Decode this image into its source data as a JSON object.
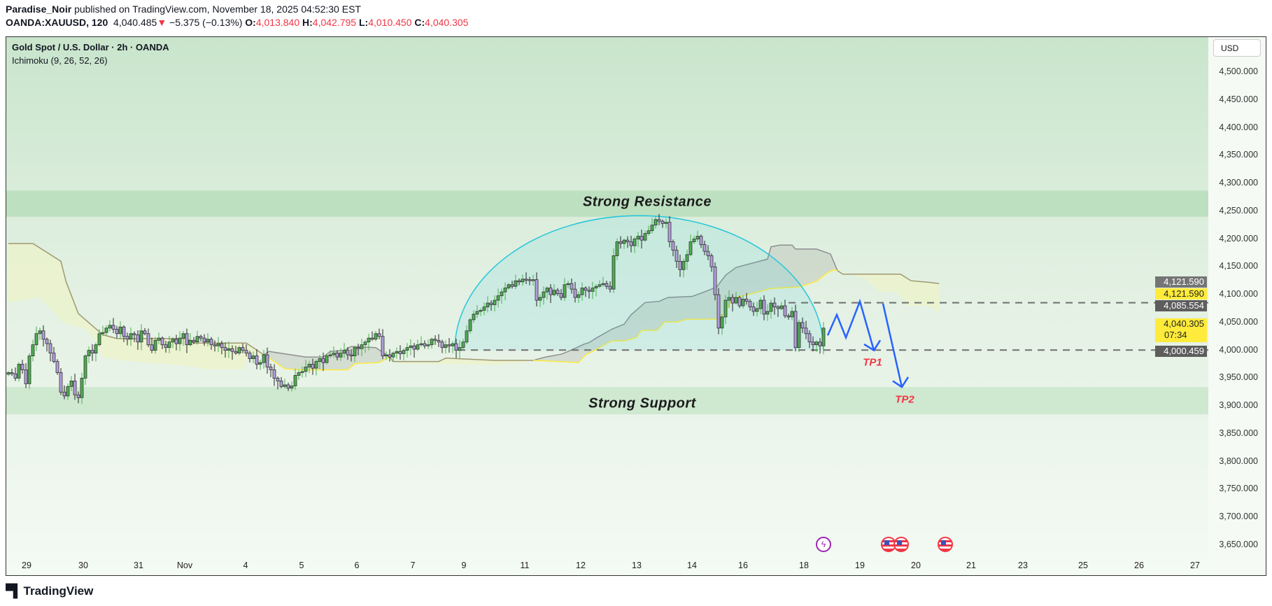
{
  "header": {
    "publisher": "Paradise_Noir",
    "published_text": "published on TradingView.com, November 18, 2025 04:52:30 EST",
    "symbol": "OANDA:XAUUSD, 120",
    "last": "4,040.485",
    "change": "−5.375 (−0.13%)",
    "o_label": "O:",
    "o": "4,013.840",
    "h_label": "H:",
    "h": "4,042.795",
    "l_label": "L:",
    "l": "4,010.450",
    "c_label": "C:",
    "c": "4,040.305"
  },
  "legend": {
    "title": "Gold Spot / U.S. Dollar · 2h · OANDA",
    "indicator": "Ichimoku (9, 26, 52, 26)"
  },
  "currency_button": "USD",
  "price_ticks": [
    "4,500.000",
    "4,450.000",
    "4,400.000",
    "4,350.000",
    "4,300.000",
    "4,250.000",
    "4,200.000",
    "4,150.000",
    "4,100.000",
    "4,050.000",
    "4,000.000",
    "3,950.000",
    "3,900.000",
    "3,850.000",
    "3,800.000",
    "3,750.000",
    "3,700.000",
    "3,650.000"
  ],
  "price_labels": {
    "cloud_b": "4,121.590",
    "cloud_a": "4,121.590",
    "level_high": "4,085.554",
    "current": "4,040.305",
    "countdown": "07:34",
    "level_low": "4,000.459"
  },
  "date_ticks": [
    "29",
    "30",
    "31",
    "Nov",
    "4",
    "5",
    "6",
    "7",
    "9",
    "11",
    "12",
    "13",
    "14",
    "16",
    "18",
    "19",
    "20",
    "21",
    "23",
    "25",
    "26",
    "27"
  ],
  "annotations": {
    "resistance": "Strong Resistance",
    "support": "Strong Support",
    "tp1": "TP1",
    "tp2": "TP2"
  },
  "branding": "TradingView",
  "colors": {
    "bull": "#4caf50",
    "bear": "#b39ddb",
    "arc": "#26c6da",
    "arrow": "#2962ff",
    "tp": "#f23645",
    "span_a": "#ffeb3b",
    "span_b": "#9e9870",
    "zone": "#bde0c0"
  },
  "chart_data": {
    "type": "candlestick",
    "title": "Gold Spot / U.S. Dollar · 2h · OANDA",
    "ylim": [
      3650,
      4500
    ],
    "closes": [
      3960,
      3958,
      3950,
      3975,
      3965,
      3940,
      3990,
      4010,
      4030,
      4035,
      4020,
      4012,
      3995,
      3980,
      3960,
      3925,
      3918,
      3935,
      3945,
      3920,
      3915,
      3950,
      3990,
      4000,
      3995,
      4010,
      4030,
      4032,
      4040,
      4045,
      4038,
      4030,
      4042,
      4025,
      4020,
      4030,
      4028,
      4015,
      4035,
      4030,
      4010,
      4000,
      4018,
      4022,
      4010,
      4005,
      4015,
      4020,
      4012,
      4022,
      4030,
      4010,
      4018,
      4015,
      4025,
      4022,
      4015,
      4020,
      4010,
      4008,
      4012,
      4005,
      4000,
      4003,
      3998,
      3995,
      4005,
      4000,
      3995,
      3985,
      3990,
      3975,
      3978,
      3992,
      3970,
      3965,
      3950,
      3945,
      3935,
      3938,
      3932,
      3936,
      3955,
      3960,
      3962,
      3970,
      3975,
      3968,
      3980,
      3985,
      3978,
      3990,
      3992,
      3995,
      3988,
      3995,
      4000,
      3992,
      3990,
      4005,
      4003,
      4010,
      4015,
      4022,
      4020,
      4030,
      4025,
      3990,
      3992,
      3988,
      3995,
      3998,
      3994,
      4000,
      4005,
      4008,
      4002,
      4010,
      4012,
      4008,
      4010,
      4020,
      4018,
      4015,
      4005,
      4010,
      4008,
      4012,
      4000,
      4005,
      4015,
      4035,
      4055,
      4065,
      4070,
      4072,
      4078,
      4085,
      4082,
      4090,
      4098,
      4105,
      4112,
      4118,
      4115,
      4125,
      4123,
      4128,
      4127,
      4126,
      4127,
      4090,
      4095,
      4105,
      4112,
      4100,
      4108,
      4102,
      4095,
      4118,
      4120,
      4110,
      4095,
      4100,
      4112,
      4108,
      4106,
      4112,
      4115,
      4118,
      4120,
      4115,
      4110,
      4170,
      4195,
      4192,
      4198,
      4195,
      4188,
      4200,
      4205,
      4198,
      4210,
      4215,
      4225,
      4235,
      4232,
      4228,
      4230,
      4195,
      4180,
      4160,
      4145,
      4160,
      4172,
      4195,
      4200,
      4205,
      4190,
      4178,
      4170,
      4150,
      4100,
      4040,
      4060,
      4090,
      4095,
      4085,
      4095,
      4080,
      4092,
      4088,
      4078,
      4070,
      4075,
      4090,
      4065,
      4070,
      4085,
      4078,
      4075,
      4080,
      4062,
      4060,
      4070,
      4005,
      4050,
      4040,
      4030,
      4015,
      4010,
      4015,
      4008,
      4040
    ],
    "zones": [
      {
        "name": "Strong Resistance",
        "from": 4240,
        "to": 4287
      },
      {
        "name": "Strong Support",
        "from": 3885,
        "to": 3934
      }
    ],
    "levels": [
      {
        "price": 4085.554,
        "from_index": 223
      },
      {
        "price": 4000.459,
        "from_index": 128.6
      }
    ],
    "arc": {
      "from_index": 127.6,
      "to_index": 233,
      "base": 4000,
      "peak": 4242
    },
    "ichimoku_cloud": [
      {
        "tone": "bull",
        "upper": [
          [
            0,
            4192
          ],
          [
            7,
            4192
          ],
          [
            15,
            4160
          ],
          [
            16.5,
            4123
          ],
          [
            20,
            4066
          ],
          [
            27,
            4028
          ],
          [
            31,
            4021
          ],
          [
            51,
            4021
          ],
          [
            53,
            4013
          ],
          [
            68,
            4013
          ],
          [
            73,
            3992
          ]
        ],
        "lower": [
          [
            0,
            4086
          ],
          [
            9,
            4095
          ],
          [
            11,
            4082
          ],
          [
            15.5,
            4051
          ],
          [
            22,
            4038
          ],
          [
            25,
            4017
          ],
          [
            27,
            3988
          ],
          [
            32,
            3982
          ],
          [
            51,
            3972
          ],
          [
            57,
            3966
          ],
          [
            67,
            3966
          ],
          [
            69,
            3992
          ],
          [
            73,
            3992
          ]
        ]
      },
      {
        "tone": "bear",
        "upper": [
          [
            73,
            3992
          ],
          [
            74.5,
            3998
          ],
          [
            85,
            3988
          ],
          [
            90,
            3988
          ],
          [
            92,
            3998
          ],
          [
            96,
            4000
          ],
          [
            98,
            4007
          ],
          [
            105,
            4005
          ],
          [
            109,
            3988
          ]
        ],
        "lower": [
          [
            73,
            3992
          ],
          [
            75,
            3984
          ],
          [
            79,
            3967
          ],
          [
            83,
            3965
          ],
          [
            97,
            3965
          ],
          [
            99,
            3976
          ],
          [
            106,
            3978
          ],
          [
            109,
            3988
          ]
        ]
      },
      {
        "tone": "bull",
        "upper": [
          [
            109,
            3988
          ],
          [
            110,
            3980
          ],
          [
            123,
            3980
          ],
          [
            125,
            3986
          ],
          [
            139,
            3982
          ],
          [
            150,
            3982
          ]
        ],
        "lower": [
          [
            109,
            3988
          ],
          [
            112,
            3976
          ],
          [
            140,
            3974
          ],
          [
            147,
            3978
          ],
          [
            150,
            3982
          ]
        ]
      },
      {
        "tone": "bear",
        "upper": [
          [
            150,
            3982
          ],
          [
            153.5,
            3988
          ],
          [
            158,
            3993
          ],
          [
            160,
            3998
          ],
          [
            164.5,
            4011
          ],
          [
            166,
            4014
          ],
          [
            168,
            4022
          ],
          [
            172.5,
            4038
          ],
          [
            176,
            4047
          ],
          [
            178,
            4064
          ],
          [
            182,
            4086
          ],
          [
            186,
            4088
          ],
          [
            188.5,
            4095
          ],
          [
            195.5,
            4097
          ],
          [
            199,
            4105
          ],
          [
            202.5,
            4114
          ],
          [
            205,
            4135
          ],
          [
            208,
            4149
          ],
          [
            217,
            4164
          ],
          [
            218,
            4186
          ],
          [
            220.5,
            4189
          ],
          [
            224,
            4189
          ],
          [
            225,
            4182
          ],
          [
            231,
            4182
          ],
          [
            235,
            4173
          ],
          [
            237,
            4143
          ]
        ],
        "lower": [
          [
            150,
            3982
          ],
          [
            163,
            3978
          ],
          [
            165,
            3992
          ],
          [
            167,
            3998
          ],
          [
            172.5,
            4017
          ],
          [
            176,
            4017
          ],
          [
            179.5,
            4023
          ],
          [
            181,
            4036
          ],
          [
            185.5,
            4036
          ],
          [
            187.5,
            4051
          ],
          [
            191,
            4051
          ],
          [
            194,
            4056
          ],
          [
            203.5,
            4056
          ],
          [
            205.5,
            4076
          ],
          [
            207,
            4093
          ],
          [
            218,
            4111
          ],
          [
            226,
            4114
          ],
          [
            231,
            4124
          ],
          [
            234,
            4139
          ],
          [
            236,
            4145
          ],
          [
            237,
            4143
          ]
        ]
      },
      {
        "tone": "bull",
        "upper": [
          [
            237,
            4143
          ],
          [
            238.5,
            4137
          ],
          [
            255,
            4137
          ],
          [
            258,
            4125
          ],
          [
            263.5,
            4122
          ],
          [
            266,
            4120
          ]
        ],
        "lower": [
          [
            237,
            4143
          ],
          [
            245,
            4129
          ],
          [
            249,
            4105
          ],
          [
            254,
            4105
          ],
          [
            257,
            4080
          ],
          [
            263,
            4080
          ],
          [
            266,
            4068
          ]
        ]
      }
    ],
    "projection": [
      {
        "name": "path-to-tp1",
        "points": [
          [
            234.2,
            4027
          ],
          [
            236.8,
            4064
          ],
          [
            239.4,
            4023
          ],
          [
            243.4,
            4088
          ],
          [
            247.4,
            4000
          ]
        ],
        "head": [
          [
            244.6,
            4011
          ],
          [
            247.4,
            4000
          ],
          [
            249.2,
            4018
          ]
        ]
      },
      {
        "name": "path-to-tp2",
        "points": [
          [
            250,
            4084
          ],
          [
            255.4,
            3934
          ]
        ],
        "head": [
          [
            252.8,
            3945
          ],
          [
            255.4,
            3934
          ],
          [
            257.2,
            3952
          ]
        ]
      }
    ],
    "labels": [
      {
        "key": "tp1",
        "index": 247,
        "price": 3978
      },
      {
        "key": "tp2",
        "index": 256.2,
        "price": 3912
      }
    ]
  }
}
